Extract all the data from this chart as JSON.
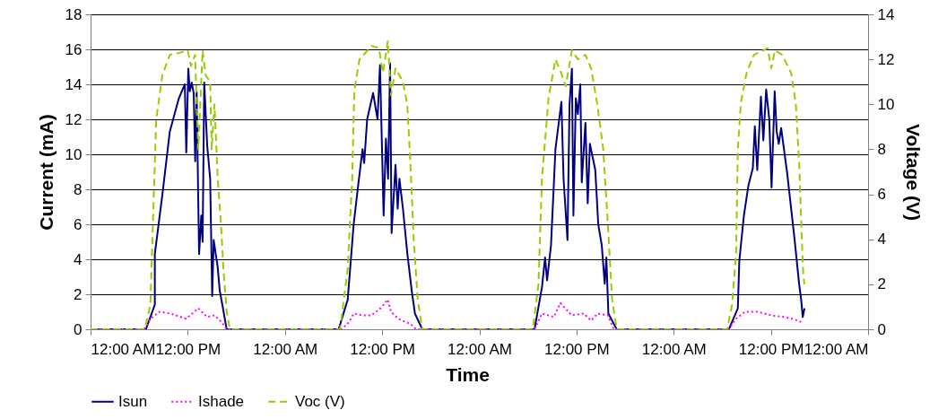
{
  "chart_data": {
    "type": "line",
    "xlabel": "Time",
    "ylabel": "Current (mA)",
    "y2label": "Voltage (V)",
    "xlim": [
      "2000-01-01T00:00",
      "2000-01-05T00:00"
    ],
    "xticks": [
      {
        "value": "2000-01-01T00:00",
        "label": "12:00 AM"
      },
      {
        "value": "2000-01-01T12:00",
        "label": "12:00 PM"
      },
      {
        "value": "2000-01-02T00:00",
        "label": "12:00 AM"
      },
      {
        "value": "2000-01-02T12:00",
        "label": "12:00 PM"
      },
      {
        "value": "2000-01-03T00:00",
        "label": "12:00 AM"
      },
      {
        "value": "2000-01-03T12:00",
        "label": "12:00 PM"
      },
      {
        "value": "2000-01-04T00:00",
        "label": "12:00 AM"
      },
      {
        "value": "2000-01-04T12:00",
        "label": "12:00 PM"
      },
      {
        "value": "2000-01-05T00:00",
        "label": "12:00 AM"
      }
    ],
    "ylim": [
      0,
      18
    ],
    "yticks": [
      0,
      2,
      4,
      6,
      8,
      10,
      12,
      14,
      16,
      18
    ],
    "y2lim": [
      0,
      14
    ],
    "y2ticks": [
      0,
      2,
      4,
      6,
      8,
      10,
      12,
      14
    ],
    "grid": "y",
    "legend": "bottom",
    "marker": "none",
    "series": [
      {
        "name": "Isun",
        "color": "#000080",
        "line_style": "solid",
        "x": [
          "2000-01-01T00:00",
          "2000-01-01T06:50",
          "2000-01-01T07:23",
          "2000-01-01T07:56",
          "2000-01-01T07:56",
          "2000-01-01T08:52",
          "2000-01-01T09:47",
          "2000-01-01T10:54",
          "2000-01-01T11:38",
          "2000-01-01T11:49",
          "2000-01-01T12:04",
          "2000-01-01T12:15",
          "2000-01-01T12:29",
          "2000-01-01T12:44",
          "2000-01-01T12:55",
          "2000-01-01T13:06",
          "2000-01-01T13:17",
          "2000-01-01T13:24",
          "2000-01-01T13:40",
          "2000-01-01T13:50",
          "2000-01-01T14:02",
          "2000-01-01T14:24",
          "2000-01-01T14:46",
          "2000-01-01T15:01",
          "2000-01-01T15:12",
          "2000-01-01T15:41",
          "2000-01-01T15:57",
          "2000-01-01T16:14",
          "2000-01-01T16:48",
          "2000-01-02T06:38",
          "2000-01-02T07:45",
          "2000-01-02T08:29",
          "2000-01-02T09:02",
          "2000-01-02T09:35",
          "2000-01-02T09:47",
          "2000-01-02T10:09",
          "2000-01-02T10:53",
          "2000-01-02T11:26",
          "2000-01-02T11:44",
          "2000-01-02T12:11",
          "2000-01-02T12:28",
          "2000-01-02T12:44",
          "2000-01-02T12:59",
          "2000-01-02T13:10",
          "2000-01-02T13:39",
          "2000-01-02T13:55",
          "2000-01-02T14:08",
          "2000-01-02T14:34",
          "2000-01-02T15:07",
          "2000-01-02T15:41",
          "2000-01-02T16:03",
          "2000-01-02T16:58",
          "2000-01-03T06:49",
          "2000-01-03T07:44",
          "2000-01-03T08:07",
          "2000-01-03T08:22",
          "2000-01-03T08:51",
          "2000-01-03T09:24",
          "2000-01-03T10:08",
          "2000-01-03T10:24",
          "2000-01-03T10:53",
          "2000-01-03T11:08",
          "2000-01-03T11:26",
          "2000-01-03T11:37",
          "2000-01-03T11:55",
          "2000-01-03T12:10",
          "2000-01-03T12:28",
          "2000-01-03T12:39",
          "2000-01-03T13:06",
          "2000-01-03T13:23",
          "2000-01-03T13:39",
          "2000-01-03T14:19",
          "2000-01-03T14:41",
          "2000-01-03T15:07",
          "2000-01-03T15:29",
          "2000-01-03T15:41",
          "2000-01-03T15:56",
          "2000-01-03T16:58",
          "2000-01-04T06:49",
          "2000-01-04T07:55",
          "2000-01-04T08:06",
          "2000-01-04T08:40",
          "2000-01-04T09:13",
          "2000-01-04T09:46",
          "2000-01-04T10:01",
          "2000-01-04T10:19",
          "2000-01-04T10:46",
          "2000-01-04T11:04",
          "2000-01-04T11:25",
          "2000-01-04T11:48",
          "2000-01-04T12:05",
          "2000-01-04T12:28",
          "2000-01-04T12:43",
          "2000-01-04T12:58",
          "2000-01-04T13:16",
          "2000-01-04T14:01",
          "2000-01-04T14:56",
          "2000-01-04T15:29",
          "2000-01-04T15:44",
          "2000-01-04T15:56",
          "2000-01-04T16:09"
        ],
        "values": [
          0,
          0,
          0.7,
          1.4,
          4.3,
          7.7,
          11.3,
          13.2,
          14.0,
          10.1,
          14.9,
          13.6,
          14.1,
          13.5,
          9.6,
          13.6,
          7.7,
          4.3,
          6.5,
          5.0,
          14.1,
          10.5,
          8.6,
          1.9,
          5.1,
          3.6,
          2.2,
          1.5,
          0,
          0,
          1.7,
          6.0,
          8.2,
          10.3,
          9.5,
          12.0,
          13.5,
          12.0,
          15.1,
          6.5,
          10.9,
          8.6,
          15.2,
          5.5,
          9.4,
          6.9,
          8.6,
          6.9,
          4.3,
          2.1,
          0.9,
          0,
          0,
          2.4,
          4.1,
          2.8,
          4.8,
          10.3,
          13.0,
          8.6,
          5.1,
          12.8,
          14.9,
          6.5,
          13.2,
          12.3,
          14.0,
          8.4,
          11.8,
          7.2,
          10.6,
          9.1,
          6.0,
          4.8,
          2.6,
          4.1,
          0.9,
          0,
          0,
          1.2,
          3.9,
          6.5,
          8.2,
          9.2,
          11.6,
          9.1,
          13.3,
          10.8,
          13.7,
          12.0,
          8.1,
          13.6,
          11.3,
          10.6,
          11.5,
          8.9,
          5.1,
          2.6,
          1.7,
          0.7,
          1.2
        ]
      },
      {
        "name": "Ishade",
        "color": "#ff00ff",
        "line_style": "dotted",
        "x": [
          "2000-01-01T00:00",
          "2000-01-01T06:36",
          "2000-01-01T07:23",
          "2000-01-01T08:30",
          "2000-01-01T09:54",
          "2000-01-01T11:48",
          "2000-01-01T13:18",
          "2000-01-01T14:24",
          "2000-01-01T15:18",
          "2000-01-01T16:12",
          "2000-01-01T16:48",
          "2000-01-02T07:00",
          "2000-01-02T07:54",
          "2000-01-02T08:30",
          "2000-01-02T09:36",
          "2000-01-02T10:42",
          "2000-01-02T11:48",
          "2000-01-02T12:42",
          "2000-01-02T13:06",
          "2000-01-02T14:00",
          "2000-01-02T15:30",
          "2000-01-02T16:12",
          "2000-01-03T06:48",
          "2000-01-03T07:44",
          "2000-01-03T09:12",
          "2000-01-03T10:00",
          "2000-01-03T11:24",
          "2000-01-03T12:54",
          "2000-01-03T13:48",
          "2000-01-03T14:36",
          "2000-01-03T15:52",
          "2000-01-03T16:36",
          "2000-01-04T06:48",
          "2000-01-04T07:42",
          "2000-01-04T08:48",
          "2000-01-04T10:18",
          "2000-01-04T12:06",
          "2000-01-04T13:36",
          "2000-01-04T14:42",
          "2000-01-04T15:49"
        ],
        "values": [
          0,
          0,
          0.6,
          1.0,
          0.9,
          0.6,
          1.2,
          0.7,
          0.8,
          0.4,
          0,
          0,
          0.4,
          0.9,
          0.8,
          0.8,
          1.2,
          1.7,
          1.0,
          0.6,
          0.3,
          0,
          0,
          0.9,
          0.7,
          1.5,
          0.8,
          0.9,
          0.5,
          0.9,
          0.8,
          0,
          0,
          0.6,
          1.0,
          1.0,
          0.8,
          0.7,
          0.6,
          0.4
        ]
      },
      {
        "name": "Voc (V)",
        "color": "#99cc00",
        "line_style": "dashed",
        "axis": "y2",
        "x": [
          "2000-01-01T00:00",
          "2000-01-01T06:42",
          "2000-01-01T07:23",
          "2000-01-01T07:45",
          "2000-01-01T08:06",
          "2000-01-01T08:52",
          "2000-01-01T09:47",
          "2000-01-01T11:06",
          "2000-01-01T12:00",
          "2000-01-01T12:24",
          "2000-01-01T12:54",
          "2000-01-01T13:18",
          "2000-01-01T13:50",
          "2000-01-01T14:12",
          "2000-01-01T14:46",
          "2000-01-01T14:57",
          "2000-01-01T15:18",
          "2000-01-01T15:42",
          "2000-01-01T16:06",
          "2000-01-01T16:24",
          "2000-01-01T16:48",
          "2000-01-01T17:12",
          "2000-01-02T06:48",
          "2000-01-02T07:45",
          "2000-01-02T08:18",
          "2000-01-02T08:34",
          "2000-01-02T09:12",
          "2000-01-02T10:42",
          "2000-01-02T11:36",
          "2000-01-02T12:06",
          "2000-01-02T12:42",
          "2000-01-02T13:06",
          "2000-01-02T13:39",
          "2000-01-02T14:34",
          "2000-01-02T15:06",
          "2000-01-02T15:30",
          "2000-01-02T15:54",
          "2000-01-02T16:24",
          "2000-01-02T16:58",
          "2000-01-03T06:36",
          "2000-01-03T07:18",
          "2000-01-03T07:44",
          "2000-01-03T08:06",
          "2000-01-03T08:33",
          "2000-01-03T09:24",
          "2000-01-03T10:06",
          "2000-01-03T10:39",
          "2000-01-03T11:26",
          "2000-01-03T12:10",
          "2000-01-03T13:06",
          "2000-01-03T13:48",
          "2000-01-03T14:34",
          "2000-01-03T15:18",
          "2000-01-03T15:52",
          "2000-01-03T16:24",
          "2000-01-03T16:58",
          "2000-01-04T06:36",
          "2000-01-04T07:12",
          "2000-01-04T07:42",
          "2000-01-04T07:55",
          "2000-01-04T08:18",
          "2000-01-04T09:00",
          "2000-01-04T09:54",
          "2000-01-04T11:04",
          "2000-01-04T11:36",
          "2000-01-04T12:03",
          "2000-01-04T12:30",
          "2000-01-04T13:24",
          "2000-01-04T14:30",
          "2000-01-04T15:05",
          "2000-01-04T15:30",
          "2000-01-04T15:49",
          "2000-01-04T16:00",
          "2000-01-04T16:09"
        ],
        "values": [
          0,
          0,
          1.1,
          5.3,
          9.3,
          11.3,
          12.2,
          12.3,
          12.4,
          11.7,
          12.2,
          8.0,
          12.4,
          11.3,
          11.0,
          8.0,
          10.0,
          6.7,
          4.7,
          2.7,
          0.8,
          0,
          0,
          2.7,
          6.7,
          10.6,
          12.0,
          12.6,
          12.5,
          11.4,
          12.8,
          10.4,
          11.6,
          11.0,
          10.0,
          7.3,
          4.0,
          1.3,
          0,
          0,
          2.0,
          6.7,
          8.3,
          10.3,
          12.0,
          11.4,
          10.8,
          12.4,
          12.0,
          12.2,
          11.6,
          10.0,
          8.0,
          4.7,
          1.3,
          0,
          0,
          1.1,
          3.3,
          8.0,
          10.1,
          11.4,
          12.2,
          12.4,
          12.5,
          11.6,
          12.4,
          12.2,
          11.4,
          10.0,
          7.3,
          4.0,
          2.4,
          2.0
        ]
      }
    ]
  }
}
